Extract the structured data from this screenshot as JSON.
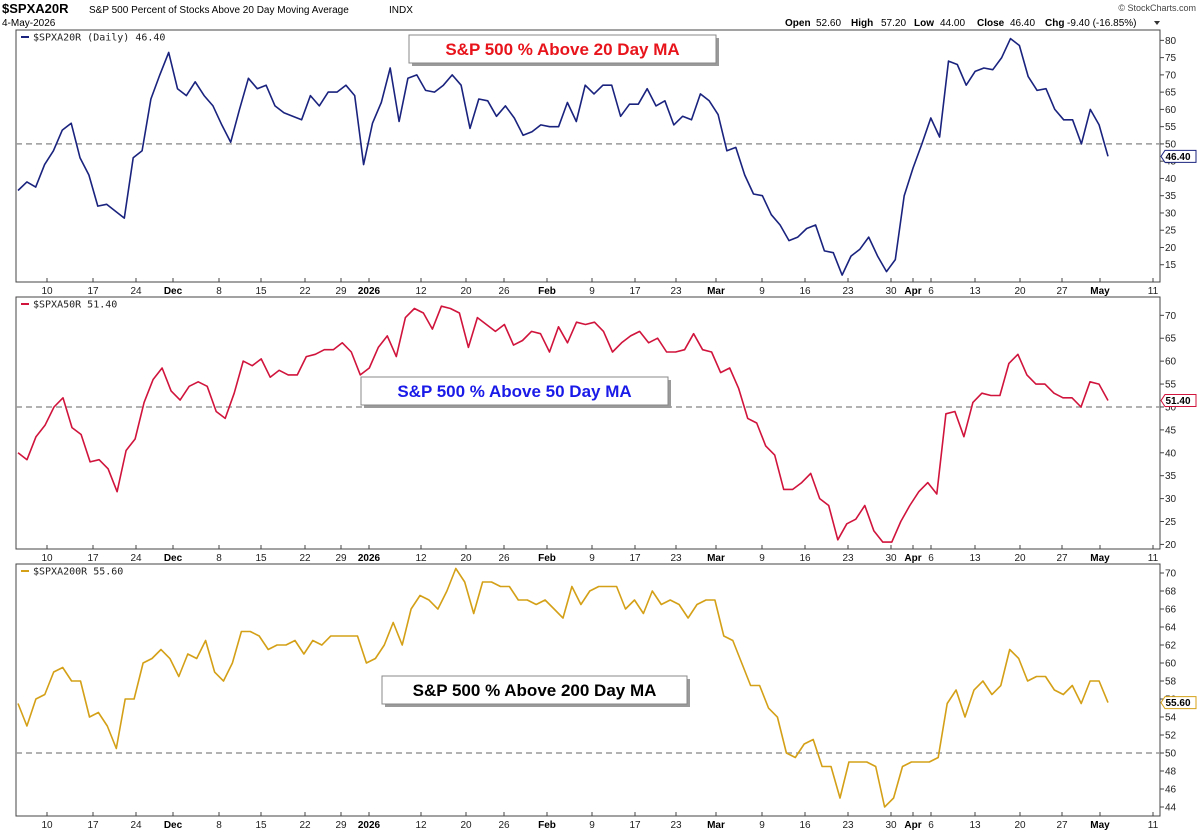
{
  "header": {
    "symbol": "$SPXA20R",
    "description": "S&P 500 Percent of Stocks Above 20 Day Moving Average",
    "exchange": "INDX",
    "date": "4-May-2026",
    "open_label": "Open",
    "open": "52.60",
    "high_label": "High",
    "high": "57.20",
    "low_label": "Low",
    "low": "44.00",
    "close_label": "Close",
    "close": "46.40",
    "chg_label": "Chg",
    "chg": "-9.40 (-16.85%)",
    "brand": "© StockCharts.com"
  },
  "x_axis": {
    "labels": [
      {
        "text": "10",
        "bold": false
      },
      {
        "text": "17",
        "bold": false
      },
      {
        "text": "24",
        "bold": false
      },
      {
        "text": "Dec",
        "bold": true
      },
      {
        "text": "8",
        "bold": false
      },
      {
        "text": "15",
        "bold": false
      },
      {
        "text": "22",
        "bold": false
      },
      {
        "text": "29",
        "bold": false
      },
      {
        "text": "2026",
        "bold": true
      },
      {
        "text": "12",
        "bold": false
      },
      {
        "text": "20",
        "bold": false
      },
      {
        "text": "26",
        "bold": false
      },
      {
        "text": "Feb",
        "bold": true
      },
      {
        "text": "9",
        "bold": false
      },
      {
        "text": "17",
        "bold": false
      },
      {
        "text": "23",
        "bold": false
      },
      {
        "text": "Mar",
        "bold": true
      },
      {
        "text": "9",
        "bold": false
      },
      {
        "text": "16",
        "bold": false
      },
      {
        "text": "23",
        "bold": false
      },
      {
        "text": "30",
        "bold": false
      },
      {
        "text": "Apr",
        "bold": true
      },
      {
        "text": "6",
        "bold": false
      },
      {
        "text": "13",
        "bold": false
      },
      {
        "text": "20",
        "bold": false
      },
      {
        "text": "27",
        "bold": false
      },
      {
        "text": "May",
        "bold": true
      },
      {
        "text": "11",
        "bold": false
      }
    ]
  },
  "chart_data": [
    {
      "type": "line",
      "legend": "$SPXA20R (Daily) 46.40",
      "annotation": "S&P 500 % Above 20 Day MA",
      "annotation_color": "#e8141c",
      "color": "#1a237e",
      "ylim": [
        10,
        83
      ],
      "yticks": [
        15,
        20,
        25,
        30,
        35,
        40,
        45,
        50,
        55,
        60,
        65,
        70,
        75,
        80
      ],
      "reference_line": 50,
      "last_value": "46.40",
      "values": [
        36.5,
        39,
        37.5,
        44,
        48,
        54,
        56,
        46,
        41,
        32,
        32.5,
        30.5,
        28.5,
        46,
        48,
        63,
        70,
        76.5,
        66,
        64,
        68,
        64,
        61,
        55.5,
        50.5,
        60,
        69,
        66,
        67,
        61,
        59,
        58,
        57,
        64,
        61,
        65,
        65,
        67,
        64,
        44,
        56,
        62,
        72,
        56.5,
        69,
        70,
        65.5,
        65,
        67,
        70,
        67,
        54.5,
        63,
        62.5,
        58,
        61,
        57.5,
        52.5,
        53.5,
        55.5,
        55,
        55,
        62,
        56.5,
        67,
        64.5,
        67,
        67,
        58,
        61.5,
        61.5,
        66,
        61,
        62.5,
        55.5,
        58,
        57,
        64.5,
        62.5,
        58.5,
        48,
        49,
        41,
        35.5,
        35,
        29.5,
        26.5,
        22,
        23,
        25.5,
        26.5,
        19,
        18.5,
        12,
        17.5,
        19.5,
        23,
        17.5,
        13,
        16.5,
        35,
        43,
        50,
        57.5,
        52,
        74,
        73,
        67,
        71,
        72,
        71.5,
        75,
        80.5,
        78.5,
        69.5,
        65.5,
        66,
        60,
        57,
        57,
        50,
        60,
        55.5,
        46.4
      ]
    },
    {
      "type": "line",
      "legend": "$SPXA50R 51.40",
      "annotation": "S&P 500 % Above 50 Day MA",
      "annotation_color": "#1a1ae8",
      "color": "#d0143c",
      "ylim": [
        19,
        74
      ],
      "yticks": [
        20,
        25,
        30,
        35,
        40,
        45,
        50,
        55,
        60,
        65,
        70
      ],
      "reference_line": 50,
      "last_value": "51.40",
      "values": [
        40,
        38.5,
        43.5,
        46,
        50,
        52,
        45.5,
        44,
        38,
        38.5,
        36.5,
        31.5,
        40.5,
        43,
        51,
        56,
        58.5,
        53.5,
        51.5,
        54.5,
        55.5,
        54.5,
        49,
        47.5,
        53,
        60,
        59,
        60.5,
        56.5,
        58,
        57,
        57,
        61,
        61.5,
        62.5,
        62.5,
        64,
        62,
        57,
        58.5,
        63,
        65.5,
        61,
        69.5,
        71.5,
        70.5,
        67,
        72,
        71.5,
        70.5,
        63,
        69.5,
        68,
        66.5,
        68,
        63.5,
        64.5,
        66.5,
        66,
        62,
        67.5,
        64,
        68.5,
        68,
        68.5,
        66.5,
        62,
        64,
        65.5,
        66.5,
        64,
        65,
        62,
        62,
        62.5,
        66,
        62.5,
        62,
        57.5,
        58.5,
        54,
        47.5,
        46.5,
        41.5,
        39.5,
        32,
        32,
        33.5,
        35.5,
        30,
        28.5,
        21,
        24.5,
        25.5,
        28.5,
        23,
        20.5,
        20.5,
        25,
        28.5,
        31.5,
        33.5,
        31,
        48.5,
        49,
        43.5,
        51,
        53,
        52.5,
        52.5,
        59.5,
        61.5,
        57,
        55,
        55,
        53,
        52,
        52,
        50,
        55.5,
        55,
        51.4
      ]
    },
    {
      "type": "line",
      "legend": "$SPXA200R 55.60",
      "annotation": "S&P 500 % Above 200 Day MA",
      "annotation_color": "#000000",
      "color": "#d4a017",
      "ylim": [
        43,
        71
      ],
      "yticks": [
        44,
        46,
        48,
        50,
        52,
        54,
        56,
        58,
        60,
        62,
        64,
        66,
        68,
        70
      ],
      "reference_line": 50,
      "last_value": "55.60",
      "values": [
        55.5,
        53,
        56,
        56.5,
        59,
        59.5,
        58,
        58,
        54,
        54.5,
        53,
        50.5,
        56,
        56,
        60,
        60.5,
        61.5,
        60.5,
        58.5,
        61,
        60.5,
        62.5,
        59,
        58,
        60,
        63.5,
        63.5,
        63,
        61.5,
        62,
        62,
        62.5,
        61,
        62.5,
        62,
        63,
        63,
        63,
        63,
        60,
        60.5,
        62,
        64.5,
        62,
        66,
        67.5,
        67,
        66,
        68,
        70.5,
        69,
        65.5,
        69,
        69,
        68.5,
        68.5,
        67,
        67,
        66.5,
        67,
        66,
        65,
        68.5,
        66.5,
        68,
        68.5,
        68.5,
        68.5,
        66,
        67,
        65.5,
        68,
        66.5,
        67,
        66.5,
        65,
        66.5,
        67,
        67,
        63,
        62.5,
        60,
        57.5,
        57.5,
        55,
        54,
        50,
        49.5,
        51,
        51.5,
        48.5,
        48.5,
        45,
        49,
        49,
        49,
        48.5,
        44,
        45,
        48.5,
        49,
        49,
        49,
        49.5,
        55.5,
        57,
        54,
        57,
        58,
        56.5,
        57.5,
        61.5,
        60.5,
        58,
        58.5,
        58.5,
        57,
        56.5,
        57.5,
        55.5,
        58,
        58,
        55.6
      ]
    }
  ]
}
